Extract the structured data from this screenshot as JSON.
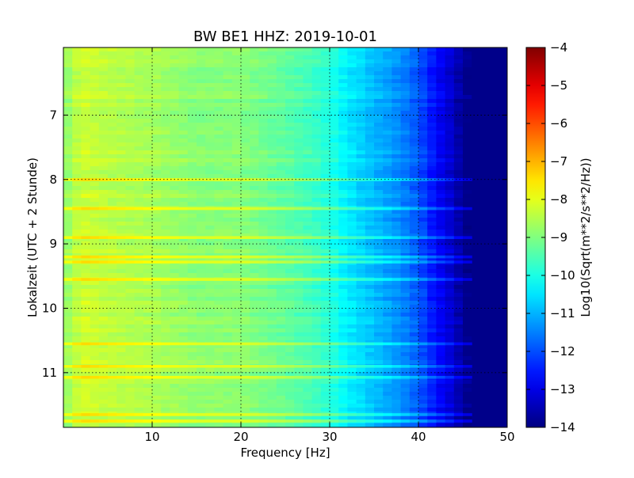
{
  "chart_data": {
    "type": "heatmap",
    "title": "BW BE1 HHZ: 2019-10-01",
    "xlabel": "Frequency [Hz]",
    "ylabel": "Lokalzeit (UTC + 2 Stunde)",
    "xlim": [
      0,
      50
    ],
    "ylim": [
      5.95,
      11.85
    ],
    "y_inverted": true,
    "x_ticks": [
      10,
      20,
      30,
      40,
      50
    ],
    "y_ticks": [
      7,
      8,
      9,
      10,
      11
    ],
    "grid": true,
    "colormap": "jet",
    "colorbar": {
      "label": "Log10(Sqrt(m**2/s**2/Hz))",
      "range": [
        -14,
        -4
      ],
      "ticks": [
        -4,
        -5,
        -6,
        -7,
        -8,
        -9,
        -10,
        -11,
        -12,
        -13,
        -14
      ]
    },
    "spectrum_profile": {
      "frequency_hz": [
        0,
        2,
        5,
        10,
        15,
        20,
        25,
        28,
        30,
        32,
        35,
        38,
        40,
        42,
        44,
        45,
        46,
        50
      ],
      "log10_amplitude": [
        -8.9,
        -8.2,
        -8.4,
        -8.6,
        -8.9,
        -8.9,
        -9.3,
        -9.6,
        -9.9,
        -10.4,
        -10.9,
        -11.4,
        -11.9,
        -12.7,
        -13.3,
        -13.8,
        -13.9,
        -13.9
      ]
    },
    "strong_lines_hours": [
      8.0,
      8.45,
      8.9,
      9.2,
      9.28,
      9.55,
      10.55,
      10.9,
      11.07,
      11.65,
      11.75
    ]
  }
}
